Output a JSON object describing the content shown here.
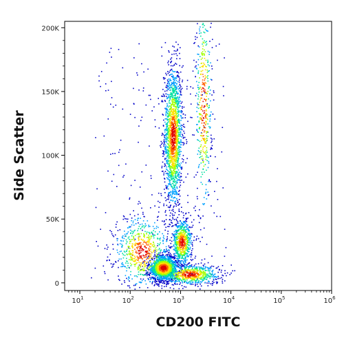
{
  "chart_data": {
    "type": "scatter",
    "subtype": "flow-cytometry density dot plot",
    "xlabel": "CD200 FITC",
    "ylabel": "Side Scatter",
    "x_scale": "log",
    "xlim": [
      5,
      1000000
    ],
    "ylim": [
      -6000,
      205000
    ],
    "x_ticks": [
      {
        "value": 10,
        "base": "10",
        "exp": "1"
      },
      {
        "value": 100,
        "base": "10",
        "exp": "2"
      },
      {
        "value": 1000,
        "base": "10",
        "exp": "3"
      },
      {
        "value": 10000,
        "base": "10",
        "exp": "4"
      },
      {
        "value": 100000,
        "base": "10",
        "exp": "5"
      },
      {
        "value": 1000000,
        "base": "10",
        "exp": "6"
      }
    ],
    "y_ticks": [
      {
        "value": 0,
        "label": "0"
      },
      {
        "value": 50000,
        "label": "50K"
      },
      {
        "value": 100000,
        "label": "100K"
      },
      {
        "value": 150000,
        "label": "150K"
      },
      {
        "value": 200000,
        "label": "200K"
      }
    ],
    "grid": false,
    "legend": "none",
    "colormap": [
      "#0000c8",
      "#00a0ff",
      "#00e0a0",
      "#a0ff00",
      "#ffe000",
      "#ff6000",
      "#e00000"
    ],
    "populations": [
      {
        "x_center": 700,
        "y_center": 115000,
        "x_spread_log": 0.09,
        "y_spread": 28000,
        "density": "high"
      },
      {
        "x_center": 450,
        "y_center": 12000,
        "x_spread_log": 0.15,
        "y_spread": 5000,
        "density": "very high"
      },
      {
        "x_center": 170,
        "y_center": 25000,
        "x_spread_log": 0.28,
        "y_spread": 14000,
        "density": "medium"
      },
      {
        "x_center": 1050,
        "y_center": 32000,
        "x_spread_log": 0.1,
        "y_spread": 9000,
        "density": "medium"
      },
      {
        "x_center": 2800,
        "y_center": 140000,
        "x_spread_log": 0.08,
        "y_spread": 45000,
        "density": "low"
      },
      {
        "x_center": 1500,
        "y_center": 7000,
        "x_spread_log": 0.3,
        "y_spread": 4000,
        "density": "medium"
      }
    ]
  }
}
